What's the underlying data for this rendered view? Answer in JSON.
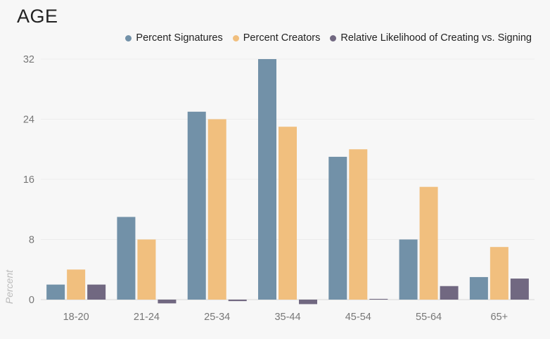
{
  "title": "AGE",
  "colors": {
    "signatures": "#7291a8",
    "creators": "#f1bf7e",
    "likelihood": "#716881",
    "grid": "#ececec",
    "axis": "#d8d8d8"
  },
  "chart_data": {
    "type": "bar",
    "title": "AGE",
    "xlabel": "",
    "ylabel": "Percent",
    "ylim": [
      0,
      32
    ],
    "yticks": [
      0,
      8,
      16,
      24,
      32
    ],
    "grid": true,
    "legend_position": "top-right",
    "categories": [
      "18-20",
      "21-24",
      "25-34",
      "35-44",
      "45-54",
      "55-64",
      "65+"
    ],
    "series": [
      {
        "name": "Percent Signatures",
        "values": [
          2,
          11,
          25,
          32,
          19,
          8,
          3
        ]
      },
      {
        "name": "Percent Creators",
        "values": [
          4,
          8,
          24,
          23,
          20,
          15,
          7
        ]
      },
      {
        "name": "Relative Likelihood of Creating vs. Signing",
        "values": [
          2,
          -0.5,
          -0.2,
          -0.6,
          0.1,
          1.8,
          2.8
        ]
      }
    ]
  }
}
